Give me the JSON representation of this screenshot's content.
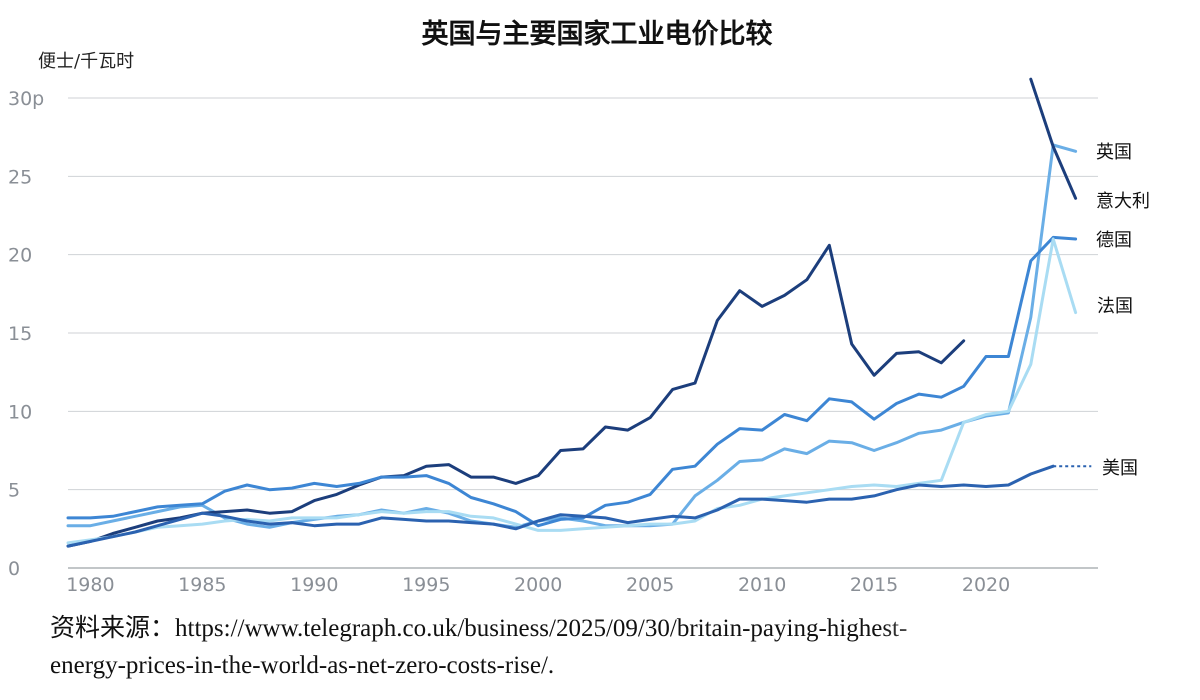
{
  "chart_data": {
    "type": "line",
    "title": "英国与主要国家工业电价比较",
    "ylabel": "便士/千瓦时",
    "xlabel": "",
    "ylim": [
      0,
      30
    ],
    "xlim": [
      1979,
      2025
    ],
    "yticks": [
      "0",
      "5",
      "10",
      "15",
      "20",
      "25",
      "30p"
    ],
    "xticks": [
      "1980",
      "1985",
      "1990",
      "1995",
      "2000",
      "2005",
      "2010",
      "2015",
      "2020"
    ],
    "grid": true,
    "legend": "end-of-line labels on right",
    "series": [
      {
        "name": "英国",
        "color": "#6aaee6",
        "points": [
          [
            1979,
            2.7
          ],
          [
            1980,
            2.7
          ],
          [
            1981,
            3.0
          ],
          [
            1982,
            3.3
          ],
          [
            1983,
            3.6
          ],
          [
            1984,
            3.9
          ],
          [
            1985,
            4.0
          ],
          [
            1986,
            3.2
          ],
          [
            1987,
            2.8
          ],
          [
            1988,
            2.6
          ],
          [
            1989,
            2.9
          ],
          [
            1990,
            3.1
          ],
          [
            1991,
            3.3
          ],
          [
            1992,
            3.4
          ],
          [
            1993,
            3.7
          ],
          [
            1994,
            3.5
          ],
          [
            1995,
            3.8
          ],
          [
            1996,
            3.5
          ],
          [
            1997,
            3.0
          ],
          [
            1998,
            2.8
          ],
          [
            1999,
            2.6
          ],
          [
            2000,
            3.0
          ],
          [
            2001,
            3.2
          ],
          [
            2002,
            3.0
          ],
          [
            2003,
            2.7
          ],
          [
            2004,
            2.7
          ],
          [
            2005,
            2.7
          ],
          [
            2006,
            2.8
          ],
          [
            2007,
            4.6
          ],
          [
            2008,
            5.6
          ],
          [
            2009,
            6.8
          ],
          [
            2010,
            6.9
          ],
          [
            2011,
            7.6
          ],
          [
            2012,
            7.3
          ],
          [
            2013,
            8.1
          ],
          [
            2014,
            8.0
          ],
          [
            2015,
            7.5
          ],
          [
            2016,
            8.0
          ],
          [
            2017,
            8.6
          ],
          [
            2018,
            8.8
          ],
          [
            2019,
            9.3
          ],
          [
            2020,
            9.7
          ],
          [
            2021,
            9.9
          ],
          [
            2022,
            16.0
          ],
          [
            2023,
            27.0
          ],
          [
            2024,
            26.6
          ]
        ]
      },
      {
        "name": "意大利",
        "color": "#1c3e7c",
        "points": [
          [
            1979,
            1.4
          ],
          [
            1980,
            1.7
          ],
          [
            1981,
            2.2
          ],
          [
            1982,
            2.6
          ],
          [
            1983,
            3.0
          ],
          [
            1984,
            3.2
          ],
          [
            1985,
            3.5
          ],
          [
            1986,
            3.6
          ],
          [
            1987,
            3.7
          ],
          [
            1988,
            3.5
          ],
          [
            1989,
            3.6
          ],
          [
            1990,
            4.3
          ],
          [
            1991,
            4.7
          ],
          [
            1992,
            5.3
          ],
          [
            1993,
            5.8
          ],
          [
            1994,
            5.9
          ],
          [
            1995,
            6.5
          ],
          [
            1996,
            6.6
          ],
          [
            1997,
            5.8
          ],
          [
            1998,
            5.8
          ],
          [
            1999,
            5.4
          ],
          [
            2000,
            5.9
          ],
          [
            2001,
            7.5
          ],
          [
            2002,
            7.6
          ],
          [
            2003,
            9.0
          ],
          [
            2004,
            8.8
          ],
          [
            2005,
            9.6
          ],
          [
            2006,
            11.4
          ],
          [
            2007,
            11.8
          ],
          [
            2008,
            15.8
          ],
          [
            2009,
            17.7
          ],
          [
            2010,
            16.7
          ],
          [
            2011,
            17.4
          ],
          [
            2012,
            18.4
          ],
          [
            2013,
            20.6
          ],
          [
            2014,
            14.3
          ],
          [
            2015,
            12.3
          ],
          [
            2016,
            13.7
          ],
          [
            2017,
            13.8
          ],
          [
            2018,
            13.1
          ],
          [
            2019,
            14.5
          ],
          [
            null,
            null
          ],
          [
            2022,
            31.2
          ],
          [
            2023,
            26.9
          ],
          [
            2024,
            23.6
          ]
        ]
      },
      {
        "name": "德国",
        "color": "#3d86d4",
        "points": [
          [
            1979,
            3.2
          ],
          [
            1980,
            3.2
          ],
          [
            1981,
            3.3
          ],
          [
            1982,
            3.6
          ],
          [
            1983,
            3.9
          ],
          [
            1984,
            4.0
          ],
          [
            1985,
            4.1
          ],
          [
            1986,
            4.9
          ],
          [
            1987,
            5.3
          ],
          [
            1988,
            5.0
          ],
          [
            1989,
            5.1
          ],
          [
            1990,
            5.4
          ],
          [
            1991,
            5.2
          ],
          [
            1992,
            5.4
          ],
          [
            1993,
            5.8
          ],
          [
            1994,
            5.8
          ],
          [
            1995,
            5.9
          ],
          [
            1996,
            5.4
          ],
          [
            1997,
            4.5
          ],
          [
            1998,
            4.1
          ],
          [
            1999,
            3.6
          ],
          [
            2000,
            2.7
          ],
          [
            2001,
            3.1
          ],
          [
            2002,
            3.2
          ],
          [
            2003,
            4.0
          ],
          [
            2004,
            4.2
          ],
          [
            2005,
            4.7
          ],
          [
            2006,
            6.3
          ],
          [
            2007,
            6.5
          ],
          [
            2008,
            7.9
          ],
          [
            2009,
            8.9
          ],
          [
            2010,
            8.8
          ],
          [
            2011,
            9.8
          ],
          [
            2012,
            9.4
          ],
          [
            2013,
            10.8
          ],
          [
            2014,
            10.6
          ],
          [
            2015,
            9.5
          ],
          [
            2016,
            10.5
          ],
          [
            2017,
            11.1
          ],
          [
            2018,
            10.9
          ],
          [
            2019,
            11.6
          ],
          [
            2020,
            13.5
          ],
          [
            2021,
            13.5
          ],
          [
            2022,
            19.6
          ],
          [
            2023,
            21.1
          ],
          [
            2024,
            21.0
          ]
        ]
      },
      {
        "name": "法国",
        "color": "#a9dcf3",
        "points": [
          [
            1979,
            1.6
          ],
          [
            1980,
            1.8
          ],
          [
            1981,
            2.0
          ],
          [
            1982,
            2.3
          ],
          [
            1983,
            2.6
          ],
          [
            1984,
            2.7
          ],
          [
            1985,
            2.8
          ],
          [
            1986,
            3.0
          ],
          [
            1987,
            3.1
          ],
          [
            1988,
            3.0
          ],
          [
            1989,
            3.2
          ],
          [
            1990,
            3.2
          ],
          [
            1991,
            3.2
          ],
          [
            1992,
            3.4
          ],
          [
            1993,
            3.6
          ],
          [
            1994,
            3.5
          ],
          [
            1995,
            3.6
          ],
          [
            1996,
            3.6
          ],
          [
            1997,
            3.3
          ],
          [
            1998,
            3.2
          ],
          [
            1999,
            2.8
          ],
          [
            2000,
            2.4
          ],
          [
            2001,
            2.4
          ],
          [
            2002,
            2.5
          ],
          [
            2003,
            2.6
          ],
          [
            2004,
            2.7
          ],
          [
            2005,
            2.8
          ],
          [
            2006,
            2.8
          ],
          [
            2007,
            3.0
          ],
          [
            2008,
            3.8
          ],
          [
            2009,
            4.0
          ],
          [
            2010,
            4.4
          ],
          [
            2011,
            4.6
          ],
          [
            2012,
            4.8
          ],
          [
            2013,
            5.0
          ],
          [
            2014,
            5.2
          ],
          [
            2015,
            5.3
          ],
          [
            2016,
            5.2
          ],
          [
            2017,
            5.4
          ],
          [
            2018,
            5.6
          ],
          [
            2019,
            9.3
          ],
          [
            2020,
            9.8
          ],
          [
            2021,
            10.0
          ],
          [
            2022,
            13.0
          ],
          [
            2023,
            21.0
          ],
          [
            2024,
            16.3
          ]
        ]
      },
      {
        "name": "美国",
        "color": "#2b62b0",
        "points": [
          [
            1979,
            1.4
          ],
          [
            1980,
            1.7
          ],
          [
            1981,
            2.0
          ],
          [
            1982,
            2.3
          ],
          [
            1983,
            2.7
          ],
          [
            1984,
            3.1
          ],
          [
            1985,
            3.5
          ],
          [
            1986,
            3.3
          ],
          [
            1987,
            3.0
          ],
          [
            1988,
            2.8
          ],
          [
            1989,
            2.9
          ],
          [
            1990,
            2.7
          ],
          [
            1991,
            2.8
          ],
          [
            1992,
            2.8
          ],
          [
            1993,
            3.2
          ],
          [
            1994,
            3.1
          ],
          [
            1995,
            3.0
          ],
          [
            1996,
            3.0
          ],
          [
            1997,
            2.9
          ],
          [
            1998,
            2.8
          ],
          [
            1999,
            2.5
          ],
          [
            2000,
            3.0
          ],
          [
            2001,
            3.4
          ],
          [
            2002,
            3.3
          ],
          [
            2003,
            3.2
          ],
          [
            2004,
            2.9
          ],
          [
            2005,
            3.1
          ],
          [
            2006,
            3.3
          ],
          [
            2007,
            3.2
          ],
          [
            2008,
            3.7
          ],
          [
            2009,
            4.4
          ],
          [
            2010,
            4.4
          ],
          [
            2011,
            4.3
          ],
          [
            2012,
            4.2
          ],
          [
            2013,
            4.4
          ],
          [
            2014,
            4.4
          ],
          [
            2015,
            4.6
          ],
          [
            2016,
            5.0
          ],
          [
            2017,
            5.3
          ],
          [
            2018,
            5.2
          ],
          [
            2019,
            5.3
          ],
          [
            2020,
            5.2
          ],
          [
            2021,
            5.3
          ],
          [
            2022,
            6.0
          ],
          [
            2023,
            6.5
          ]
        ],
        "projection": [
          [
            2023,
            6.5
          ],
          [
            2024.7,
            6.5
          ]
        ]
      }
    ]
  },
  "source": {
    "label": "资料来源：",
    "url_text": "https://www.telegraph.co.uk/business/2025/09/30/britain-paying-highest-energy-prices-in-the-world-as-net-zero-costs-rise/."
  }
}
